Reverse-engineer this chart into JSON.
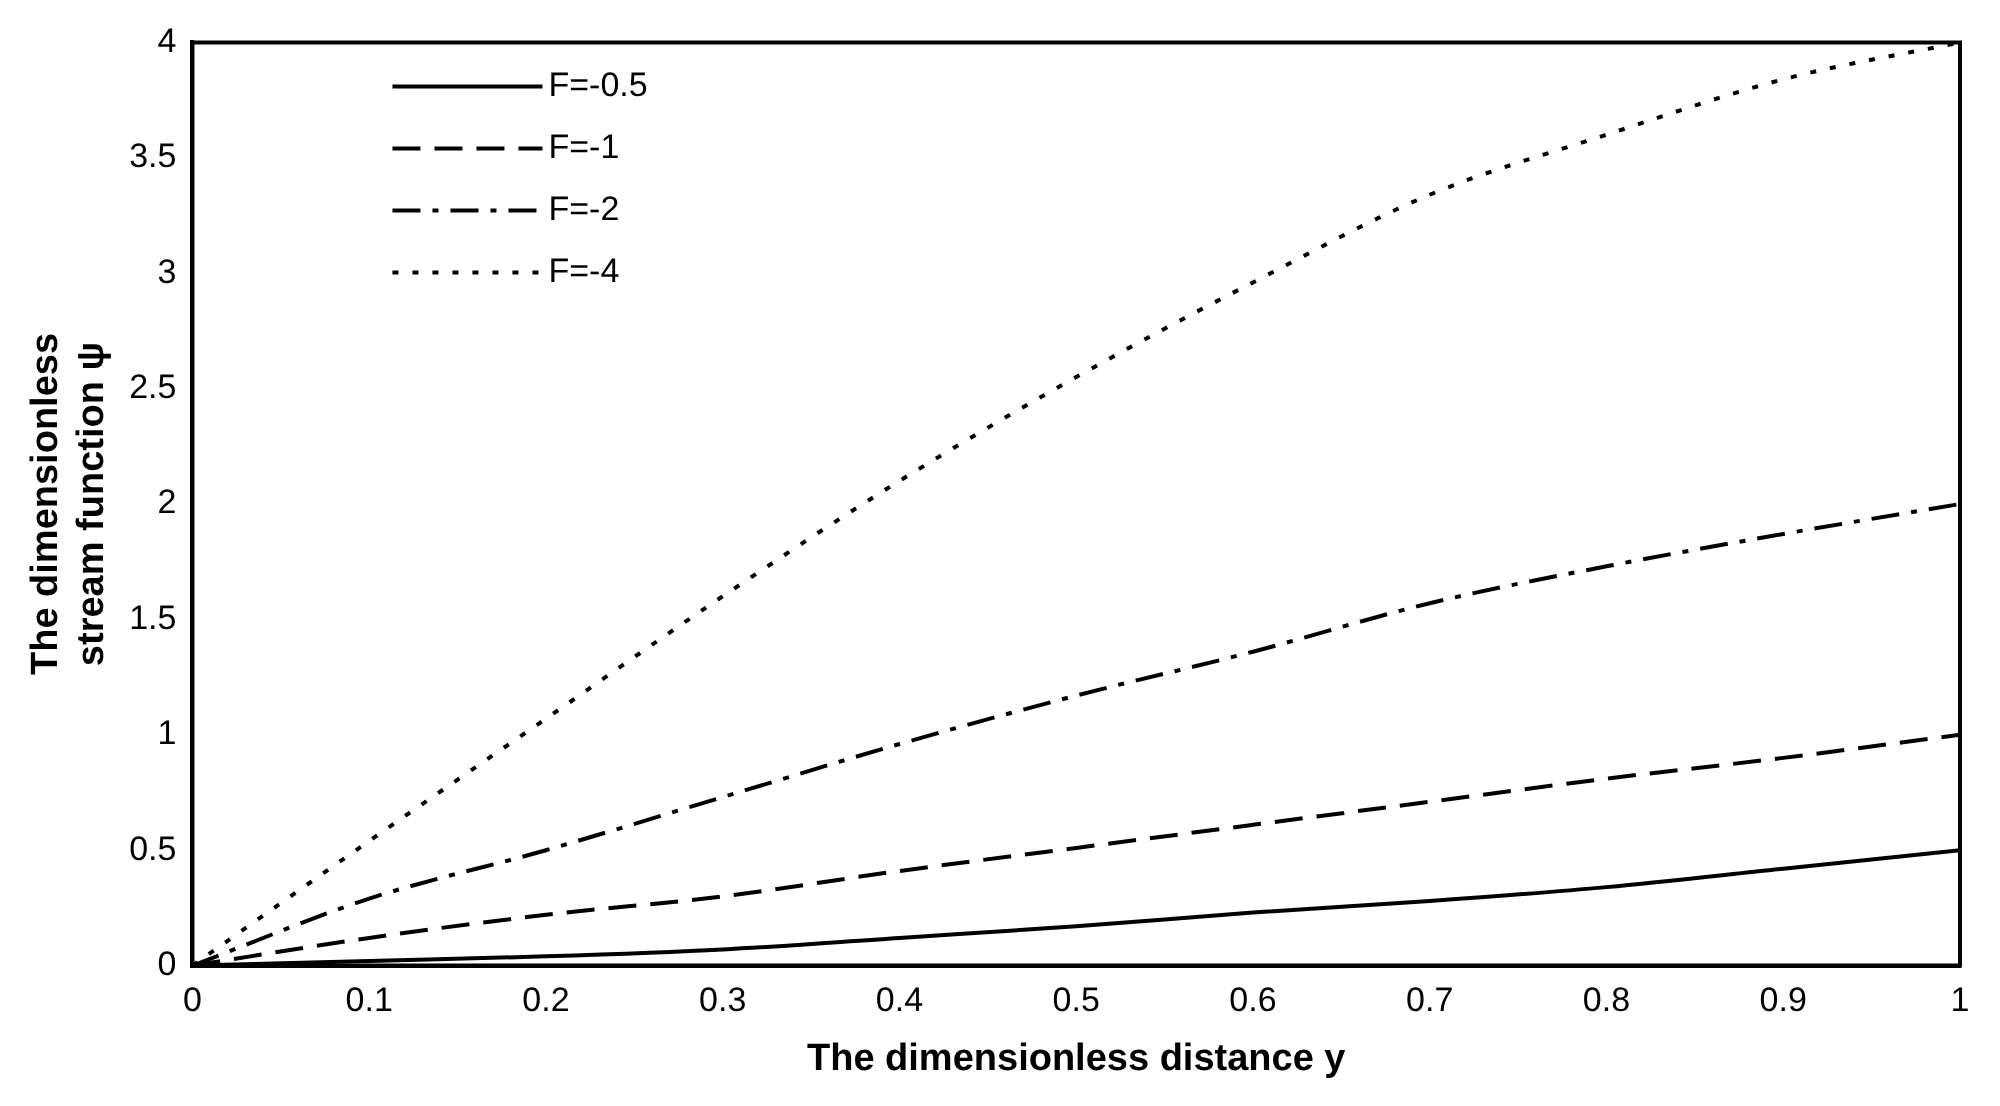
{
  "chart_data": {
    "type": "line",
    "xlabel": "The dimensionless distance y",
    "ylabel": "The dimensionless stream function ψ",
    "x": [
      0,
      0.1,
      0.2,
      0.3,
      0.4,
      0.5,
      0.6,
      0.7,
      0.8,
      0.9,
      1
    ],
    "xlim": [
      0,
      1
    ],
    "xticks": [
      0,
      0.1,
      0.2,
      0.3,
      0.4,
      0.5,
      0.6,
      0.7,
      0.8,
      0.9,
      1
    ],
    "ylim": [
      0,
      4
    ],
    "yticks": [
      0,
      0.5,
      1,
      1.5,
      2,
      2.5,
      3,
      3.5,
      4
    ],
    "grid": false,
    "legend": "top left",
    "marker": "none",
    "series": [
      {
        "name": "F=-0.5",
        "color": "#000000",
        "line_style": "solid",
        "values": [
          0,
          0.02,
          0.04,
          0.07,
          0.12,
          0.17,
          0.23,
          0.28,
          0.34,
          0.42,
          0.5
        ]
      },
      {
        "name": "F=-1",
        "color": "#000000",
        "line_style": "dashed",
        "values": [
          0,
          0.12,
          0.22,
          0.3,
          0.41,
          0.51,
          0.61,
          0.71,
          0.81,
          0.9,
          1
        ]
      },
      {
        "name": "F=-2",
        "color": "#000000",
        "line_style": "dashdot",
        "values": [
          0,
          0.29,
          0.5,
          0.73,
          0.96,
          1.17,
          1.36,
          1.57,
          1.73,
          1.87,
          2
        ]
      },
      {
        "name": "F=-4",
        "color": "#000000",
        "line_style": "dotted",
        "values": [
          0,
          0.54,
          1.07,
          1.6,
          2.1,
          2.55,
          2.96,
          3.34,
          3.6,
          3.84,
          4
        ]
      }
    ]
  }
}
